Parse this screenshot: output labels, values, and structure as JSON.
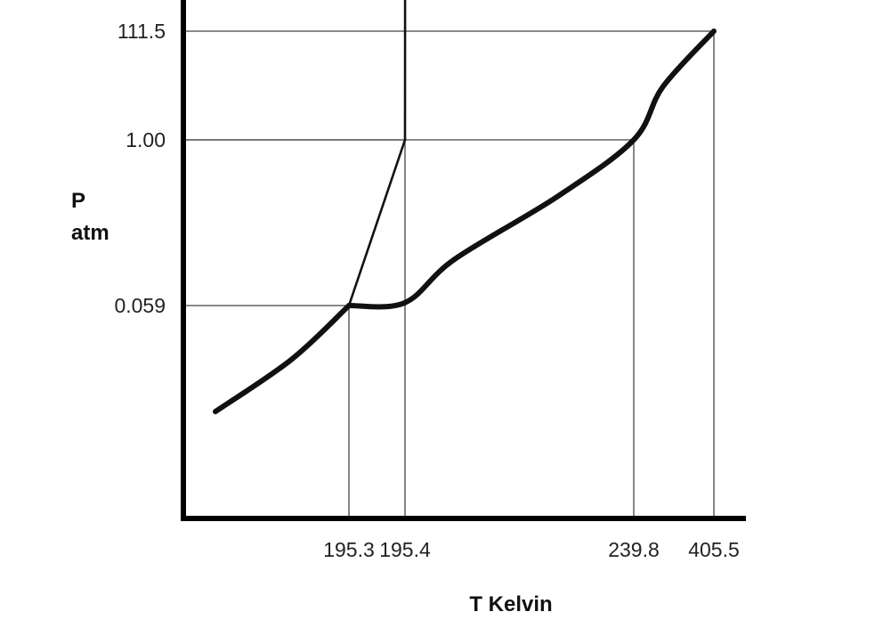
{
  "chart_data": {
    "type": "line",
    "title": "",
    "xlabel": "T Kelvin",
    "ylabel_lines": [
      "P",
      "atm"
    ],
    "x_ticks": [
      "195.3",
      "195.4",
      "239.8",
      "405.5"
    ],
    "y_ticks": [
      "111.5",
      "1.00",
      "0.059"
    ],
    "grid": false,
    "reference_lines": [
      {
        "x": "195.3",
        "y": "0.059"
      },
      {
        "x": "195.4",
        "y": "1.00"
      },
      {
        "x": "239.8",
        "y": "1.00"
      },
      {
        "x": "405.5",
        "y": "111.5"
      }
    ],
    "series": [
      {
        "id": "lower-curve",
        "style": "thick",
        "points": [
          {
            "x": 190.0,
            "y": 0.01
          },
          {
            "x": 193.0,
            "y": 0.032
          },
          {
            "x": 195.3,
            "y": 0.059
          }
        ]
      },
      {
        "id": "upper-curve",
        "style": "thick",
        "points": [
          {
            "x": 195.3,
            "y": 0.059
          },
          {
            "x": 195.4,
            "y": 0.062
          },
          {
            "x": 205.0,
            "y": 0.13
          },
          {
            "x": 225.0,
            "y": 0.38
          },
          {
            "x": 239.8,
            "y": 1.0
          },
          {
            "x": 300.0,
            "y": 10.0
          },
          {
            "x": 405.5,
            "y": 111.5
          }
        ]
      },
      {
        "id": "steep-line",
        "style": "thin",
        "points": [
          {
            "x": 195.3,
            "y": 0.059
          },
          {
            "x": 195.4,
            "y": 1.0
          },
          {
            "x": 195.42,
            "y": 200.0
          }
        ]
      }
    ],
    "colors": {
      "ink": "#111111",
      "reference": "#444444",
      "axis": "#000000"
    }
  }
}
